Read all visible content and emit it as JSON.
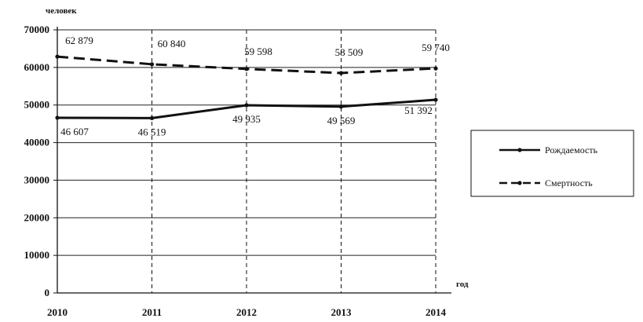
{
  "chart_data": {
    "type": "line",
    "title": "",
    "ylabel": "человек",
    "xlabel": "год",
    "x": [
      "2010",
      "2011",
      "2012",
      "2013",
      "2014"
    ],
    "ylim": [
      0,
      70000
    ],
    "yticks": [
      0,
      10000,
      20000,
      30000,
      40000,
      50000,
      60000,
      70000
    ],
    "ytick_labels": [
      "0",
      "10000",
      "20000",
      "30000",
      "40000",
      "50000",
      "60000",
      "70000"
    ],
    "grid": true,
    "legend_position": "right",
    "series": [
      {
        "name": "Рождаемость",
        "style": "solid",
        "values": [
          46607,
          46519,
          49935,
          49569,
          51392
        ],
        "labels": [
          "46 607",
          "46 519",
          "49 935",
          "49 569",
          "51 392"
        ]
      },
      {
        "name": "Смертность",
        "style": "dashed",
        "values": [
          62879,
          60840,
          59598,
          58509,
          59740
        ],
        "labels": [
          "62 879",
          "60 840",
          "59 598",
          "58 509",
          "59 740"
        ]
      }
    ]
  }
}
